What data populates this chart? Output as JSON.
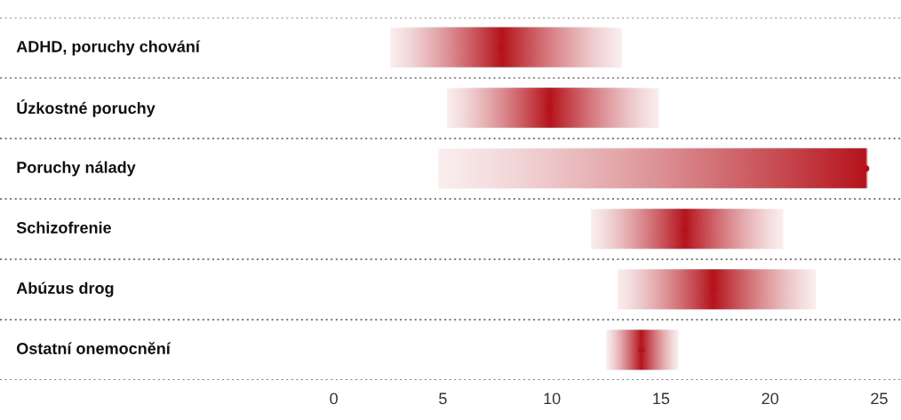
{
  "chart_data": {
    "type": "bar",
    "orientation": "horizontal",
    "categories": [
      "ADHD, poruchy chování",
      "Úzkostné poruchy",
      "Poruchy nálady",
      "Schizofrenie",
      "Abúzus drog",
      "Ostatní onemocnění"
    ],
    "series": [
      {
        "color": "#b5121b",
        "base": [
          2.6,
          5.2,
          4.8,
          11.8,
          13.0,
          12.5
        ],
        "values": [
          10.6,
          9.7,
          19.7,
          8.8,
          9.1,
          3.3
        ]
      },
      {
        "type": "scatter",
        "color": "#b5121b",
        "values": [
          7.7,
          9.9,
          24.4,
          16.1,
          17.4,
          14.1
        ]
      }
    ],
    "xlim": [
      -15.3,
      26
    ],
    "xticks": [
      0,
      5,
      10,
      15,
      20,
      25
    ]
  }
}
